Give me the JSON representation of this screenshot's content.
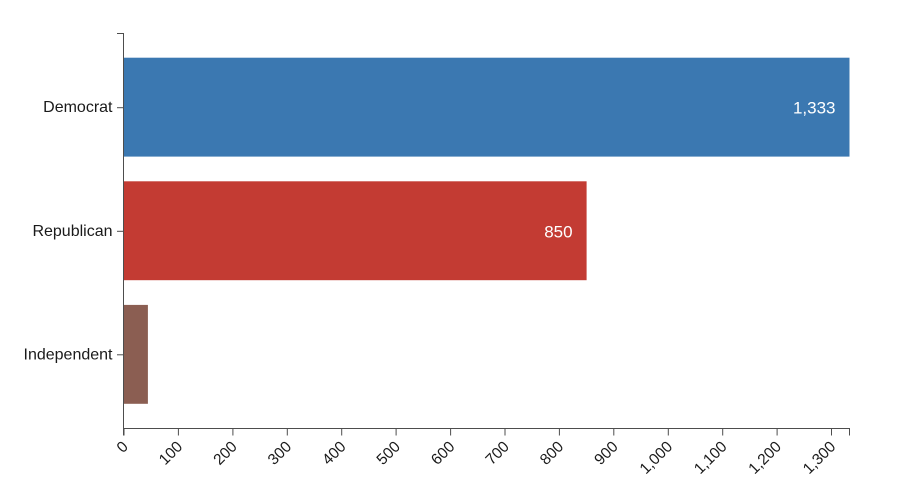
{
  "chart_data": {
    "type": "bar",
    "orientation": "horizontal",
    "title": "",
    "xlabel": "",
    "ylabel": "",
    "categories": [
      "Democrat",
      "Republican",
      "Independent"
    ],
    "values": [
      1333,
      850,
      44
    ],
    "value_labels": [
      "1,333",
      "850",
      ""
    ],
    "bar_colors": [
      "#3b78b1",
      "#c33b33",
      "#8b5e52"
    ],
    "xlim": [
      0,
      1333
    ],
    "x_tick_interval": 100,
    "x_tick_labels": [
      "0",
      "100",
      "200",
      "300",
      "400",
      "500",
      "600",
      "700",
      "800",
      "900",
      "1,000",
      "1,100",
      "1,200",
      "1,300"
    ],
    "x_tick_rotation": -45,
    "grid": false,
    "legend": false,
    "axis_color": "#4d4d4d",
    "text_color": "#1a1a1a",
    "value_label_color": "#ffffff"
  }
}
